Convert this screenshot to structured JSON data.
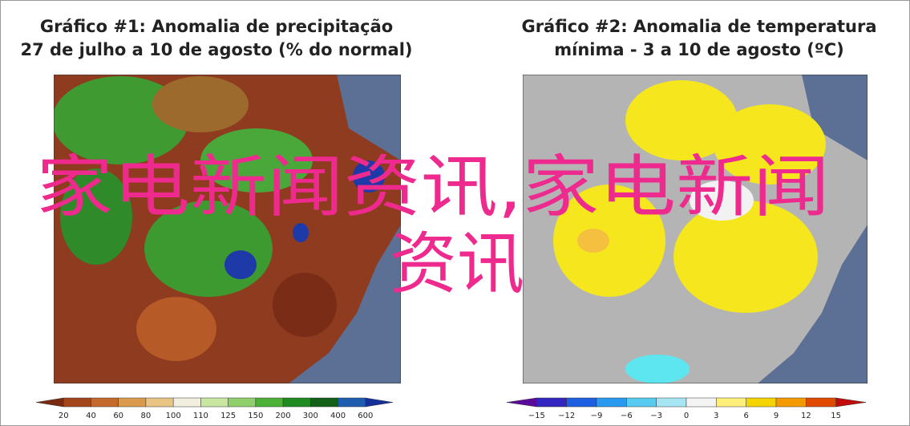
{
  "panels": [
    {
      "title": [
        "Gráfico #1: Anomalia de precipitação",
        "27 de julho a 10 de agosto (% do normal)"
      ],
      "scale": [
        "20",
        "40",
        "60",
        "80",
        "100",
        "110",
        "125",
        "150",
        "200",
        "300",
        "400",
        "600"
      ]
    },
    {
      "title": [
        "Gráfico #2: Anomalia de temperatura",
        "mínima - 3 a 10 de agosto (ºC)"
      ],
      "scale": [
        "−15",
        "−12",
        "−9",
        "−6",
        "−3",
        "0",
        "3",
        "6",
        "9",
        "12",
        "15"
      ]
    }
  ],
  "overlay": [
    "家电新闻资讯,家电新闻",
    "资讯"
  ]
}
